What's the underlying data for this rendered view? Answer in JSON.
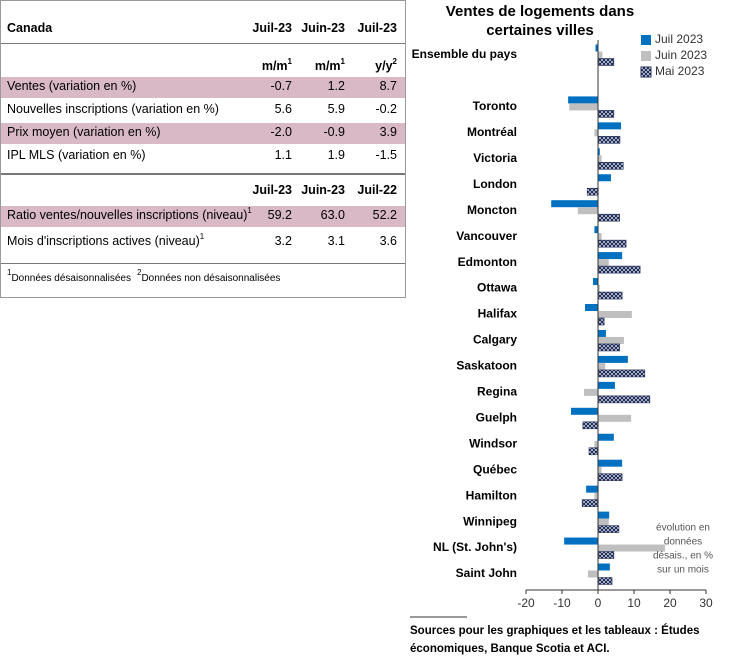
{
  "table": {
    "title": "Canada",
    "sections": [
      {
        "columns": [
          "Juil-23",
          "Juin-23",
          "Juil-23"
        ],
        "units": [
          {
            "text": "m/m",
            "sup": "1"
          },
          {
            "text": "m/m",
            "sup": "1"
          },
          {
            "text": "y/y",
            "sup": "2"
          }
        ],
        "rows": [
          {
            "label": "Ventes (variation en %)",
            "values": [
              "-0.7",
              "1.2",
              "8.7"
            ],
            "highlight": true
          },
          {
            "label": "Nouvelles inscriptions (variation en %)",
            "values": [
              "5.6",
              "5.9",
              "-0.2"
            ],
            "highlight": false
          },
          {
            "label": "Prix moyen (variation en %)",
            "values": [
              "-2.0",
              "-0.9",
              "3.9"
            ],
            "highlight": true
          },
          {
            "label": "IPL MLS (variation en %)",
            "values": [
              "1.1",
              "1.9",
              "-1.5"
            ],
            "highlight": false
          }
        ]
      },
      {
        "columns": [
          "Juil-23",
          "Juin-23",
          "Juil-22"
        ],
        "rows": [
          {
            "label": "Ratio ventes/nouvelles inscriptions (niveau)",
            "sup": "1",
            "values": [
              "59.2",
              "63.0",
              "52.2"
            ],
            "highlight": true
          },
          {
            "label": "Mois d'inscriptions actives (niveau)",
            "sup": "1",
            "values": [
              "3.2",
              "3.1",
              "3.6"
            ],
            "highlight": false
          }
        ]
      }
    ],
    "footnotes": [
      {
        "sup": "1",
        "text": "Données désaisonnalisées"
      },
      {
        "sup": "2",
        "text": "Données non désaisonnalisées"
      }
    ]
  },
  "chart_data": {
    "type": "hbar",
    "title": "Ventes de logements dans certaines villes",
    "categories": [
      "Ensemble du pays",
      null,
      "Toronto",
      "Montréal",
      "Victoria",
      "London",
      "Moncton",
      "Vancouver",
      "Edmonton",
      "Ottawa",
      "Halifax",
      "Calgary",
      "Saskatoon",
      "Regina",
      "Guelph",
      "Windsor",
      "Québec",
      "Hamilton",
      "Winnipeg",
      "NL (St. John's)",
      "Saint John"
    ],
    "series": [
      {
        "name": "Juil 2023",
        "color": "#0070c0",
        "values": [
          -0.7,
          null,
          -8.3,
          6.4,
          0.5,
          3.6,
          -13,
          -1,
          6.7,
          -1.4,
          -3.6,
          2.2,
          8.3,
          4.7,
          -7.5,
          4.4,
          6.7,
          -3.3,
          3.1,
          -9.4,
          3.3
        ]
      },
      {
        "name": "Juin 2023",
        "color": "#bfbfbf",
        "values": [
          1.2,
          null,
          -8,
          -1,
          1,
          0,
          -5.6,
          1,
          3,
          0.5,
          9.4,
          7.2,
          2,
          -3.9,
          9.2,
          -1,
          1,
          -1,
          3,
          18.6,
          -2.8
        ]
      },
      {
        "name": "Mai 2023",
        "color": "#1f2d5a",
        "values": [
          4.4,
          null,
          4.4,
          6.1,
          7,
          -3,
          6,
          7.8,
          11.7,
          6.7,
          1.7,
          6,
          13,
          14.4,
          -4.2,
          -2.5,
          6.7,
          -4.4,
          5.8,
          4.4,
          3.9
        ]
      }
    ],
    "xlim": [
      -20,
      30
    ],
    "xticks": [
      -20,
      -10,
      0,
      10,
      20,
      30
    ],
    "annotation": [
      "évolution en",
      "données",
      "désais., en %",
      "sur un mois"
    ],
    "source": "Sources pour les graphiques et les tableaux : Études économiques, Banque Scotia et ACI."
  }
}
